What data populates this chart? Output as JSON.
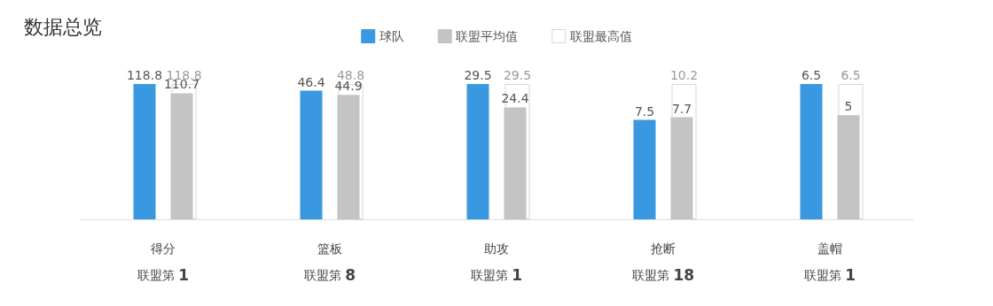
{
  "chart_data": [
    {
      "type": "bar",
      "title": "数据总览",
      "legend": "top",
      "data_labels": true,
      "categories": [
        "得分"
      ],
      "annotations": [
        "联盟第 1"
      ],
      "series": [
        {
          "name": "球队",
          "color": "#3a98e0",
          "values": [
            118.8
          ]
        },
        {
          "name": "联盟平均值",
          "color": "#c4c4c4",
          "values": [
            110.7
          ]
        },
        {
          "name": "联盟最高值",
          "color": "#ffffff",
          "values": [
            118.8
          ]
        }
      ]
    },
    {
      "type": "bar",
      "data_labels": true,
      "categories": [
        "篮板"
      ],
      "annotations": [
        "联盟第 8"
      ],
      "series": [
        {
          "color": "#3a98e0",
          "values": [
            46.4
          ]
        },
        {
          "color": "#c4c4c4",
          "values": [
            44.9
          ]
        },
        {
          "color": "#ffffff",
          "values": [
            48.8
          ]
        }
      ]
    },
    {
      "type": "bar",
      "data_labels": true,
      "categories": [
        "助攻"
      ],
      "annotations": [
        "联盟第 1"
      ],
      "series": [
        {
          "color": "#3a98e0",
          "values": [
            29.5
          ]
        },
        {
          "color": "#c4c4c4",
          "values": [
            24.4
          ]
        },
        {
          "color": "#ffffff",
          "values": [
            29.5
          ]
        }
      ]
    },
    {
      "type": "bar",
      "data_labels": true,
      "categories": [
        "抢断"
      ],
      "annotations": [
        "联盟第 18"
      ],
      "series": [
        {
          "color": "#3a98e0",
          "values": [
            7.5
          ]
        },
        {
          "color": "#c4c4c4",
          "values": [
            7.7
          ]
        },
        {
          "color": "#ffffff",
          "values": [
            10.2
          ]
        }
      ]
    },
    {
      "type": "bar",
      "data_labels": true,
      "categories": [
        "盖帽"
      ],
      "annotations": [
        "联盟第 1"
      ],
      "series": [
        {
          "color": "#3a98e0",
          "values": [
            6.5
          ]
        },
        {
          "color": "#c4c4c4",
          "values": [
            5
          ]
        },
        {
          "color": "#ffffff",
          "values": [
            6.5
          ]
        }
      ]
    }
  ]
}
